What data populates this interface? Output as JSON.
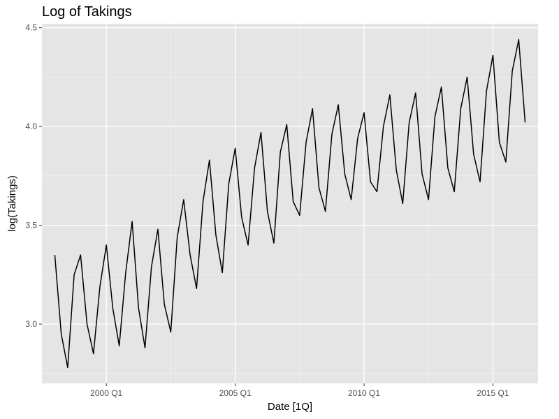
{
  "chart_data": {
    "type": "line",
    "title": "Log of Takings",
    "xlabel": "Date [1Q]",
    "ylabel": "log(Takings)",
    "x_ticks": [
      "2000 Q1",
      "2005 Q1",
      "2010 Q1",
      "2015 Q1"
    ],
    "y_ticks": [
      "3.0",
      "3.5",
      "4.0",
      "4.5"
    ],
    "xlim": [
      "1997 Q3",
      "2016 Q4"
    ],
    "ylim": [
      2.7,
      4.52
    ],
    "grid": true,
    "series": [
      {
        "color": "#000000",
        "x": [
          "1998 Q1",
          "1998 Q2",
          "1998 Q3",
          "1998 Q4",
          "1999 Q1",
          "1999 Q2",
          "1999 Q3",
          "1999 Q4",
          "2000 Q1",
          "2000 Q2",
          "2000 Q3",
          "2000 Q4",
          "2001 Q1",
          "2001 Q2",
          "2001 Q3",
          "2001 Q4",
          "2002 Q1",
          "2002 Q2",
          "2002 Q3",
          "2002 Q4",
          "2003 Q1",
          "2003 Q2",
          "2003 Q3",
          "2003 Q4",
          "2004 Q1",
          "2004 Q2",
          "2004 Q3",
          "2004 Q4",
          "2005 Q1",
          "2005 Q2",
          "2005 Q3",
          "2005 Q4",
          "2006 Q1",
          "2006 Q2",
          "2006 Q3",
          "2006 Q4",
          "2007 Q1",
          "2007 Q2",
          "2007 Q3",
          "2007 Q4",
          "2008 Q1",
          "2008 Q2",
          "2008 Q3",
          "2008 Q4",
          "2009 Q1",
          "2009 Q2",
          "2009 Q3",
          "2009 Q4",
          "2010 Q1",
          "2010 Q2",
          "2010 Q3",
          "2010 Q4",
          "2011 Q1",
          "2011 Q2",
          "2011 Q3",
          "2011 Q4",
          "2012 Q1",
          "2012 Q2",
          "2012 Q3",
          "2012 Q4",
          "2013 Q1",
          "2013 Q2",
          "2013 Q3",
          "2013 Q4",
          "2014 Q1",
          "2014 Q2",
          "2014 Q3",
          "2014 Q4",
          "2015 Q1",
          "2015 Q2",
          "2015 Q3",
          "2015 Q4",
          "2016 Q1",
          "2016 Q2"
        ],
        "values": [
          3.35,
          2.95,
          2.78,
          3.25,
          3.35,
          3.0,
          2.85,
          3.19,
          3.4,
          3.08,
          2.89,
          3.26,
          3.52,
          3.08,
          2.88,
          3.29,
          3.48,
          3.1,
          2.96,
          3.44,
          3.63,
          3.35,
          3.18,
          3.62,
          3.83,
          3.45,
          3.26,
          3.71,
          3.89,
          3.54,
          3.4,
          3.79,
          3.97,
          3.57,
          3.41,
          3.87,
          4.01,
          3.62,
          3.55,
          3.92,
          4.09,
          3.69,
          3.57,
          3.96,
          4.11,
          3.76,
          3.63,
          3.94,
          4.07,
          3.72,
          3.67,
          4.0,
          4.16,
          3.78,
          3.61,
          4.02,
          4.17,
          3.76,
          3.63,
          4.05,
          4.2,
          3.79,
          3.67,
          4.09,
          4.25,
          3.86,
          3.72,
          4.18,
          4.36,
          3.92,
          3.82,
          4.28,
          4.44,
          4.02
        ]
      }
    ]
  }
}
